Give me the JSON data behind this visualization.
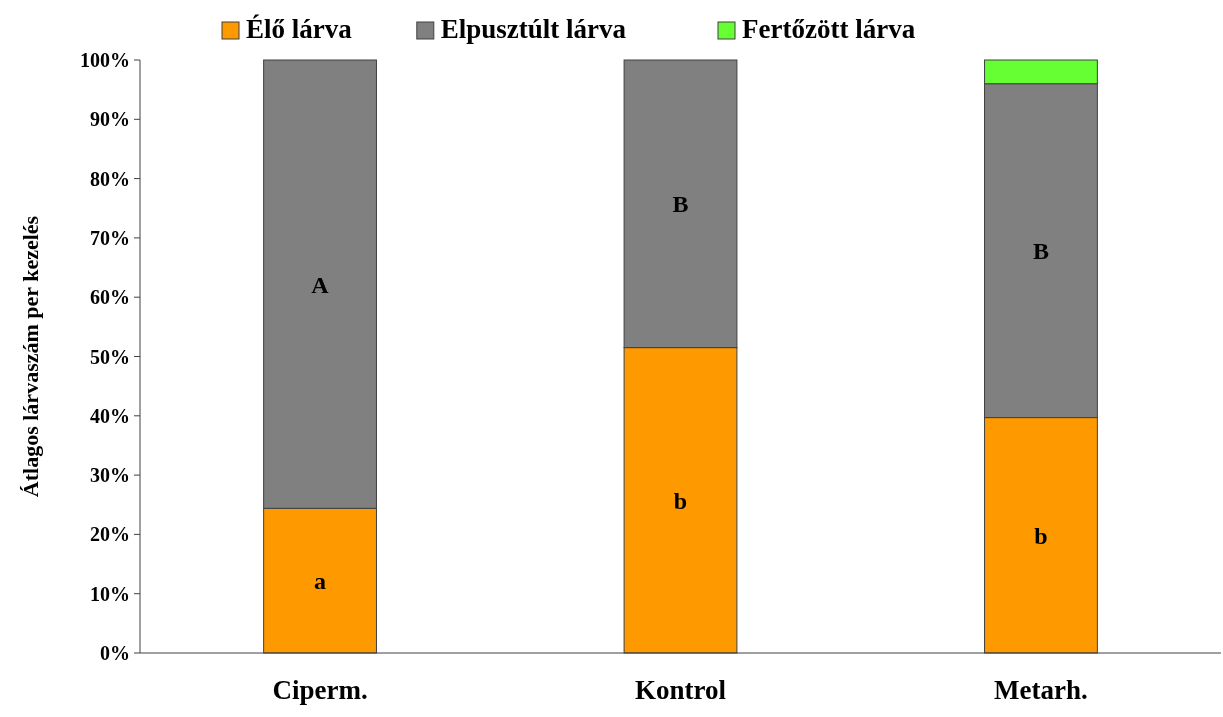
{
  "chart_data": {
    "type": "bar",
    "stacked": true,
    "ylabel": "Átlagos lárvaszám per kezelés",
    "categories": [
      "Ciperm.",
      "Kontrol",
      "Metarh."
    ],
    "series": [
      {
        "name": "Élő lárva",
        "color": "#ff9900",
        "values": [
          24.4,
          51.5,
          39.7
        ],
        "value_labels": [
          "a",
          "b",
          "b"
        ]
      },
      {
        "name": "Elpusztúlt lárva",
        "color": "#808080",
        "values": [
          75.6,
          48.5,
          56.3
        ],
        "value_labels": [
          "A",
          "B",
          "B"
        ]
      },
      {
        "name": "Fertőzött lárva",
        "color": "#66ff33",
        "values": [
          0,
          0,
          4.0
        ]
      }
    ],
    "ylim": [
      0,
      100
    ],
    "yticks": [
      {
        "value": 0,
        "label": "0%"
      },
      {
        "value": 10,
        "label": "10%"
      },
      {
        "value": 20,
        "label": "20%"
      },
      {
        "value": 30,
        "label": "30%"
      },
      {
        "value": 40,
        "label": "40%"
      },
      {
        "value": 50,
        "label": "50%"
      },
      {
        "value": 60,
        "label": "60%"
      },
      {
        "value": 70,
        "label": "70%"
      },
      {
        "value": 80,
        "label": "80%"
      },
      {
        "value": 90,
        "label": "90%"
      },
      {
        "value": 100,
        "label": "100%"
      }
    ],
    "legend": "top",
    "grid": false
  }
}
